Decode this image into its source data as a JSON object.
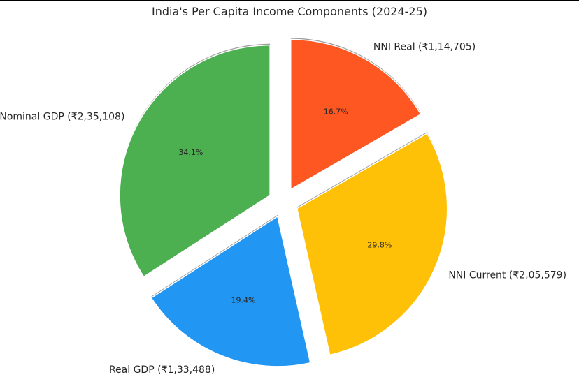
{
  "chart_data": {
    "type": "pie",
    "title": "India's Per Capita Income Components (2024-25)",
    "slices": [
      {
        "label": "NNI Real (₹1,14,705)",
        "value": 114705,
        "pct_label": "16.7%",
        "color": "#FF5722"
      },
      {
        "label": "NNI Current (₹2,05,579)",
        "value": 205579,
        "pct_label": "29.8%",
        "color": "#FFC107"
      },
      {
        "label": "Real GDP (₹1,33,488)",
        "value": 133488,
        "pct_label": "19.4%",
        "color": "#2196F3"
      },
      {
        "label": "Nominal GDP (₹2,35,108)",
        "value": 235108,
        "pct_label": "34.1%",
        "color": "#4CAF50"
      }
    ],
    "start_angle": "top",
    "direction": "clockwise",
    "exploded": true,
    "shadow": true,
    "legend": "none"
  }
}
